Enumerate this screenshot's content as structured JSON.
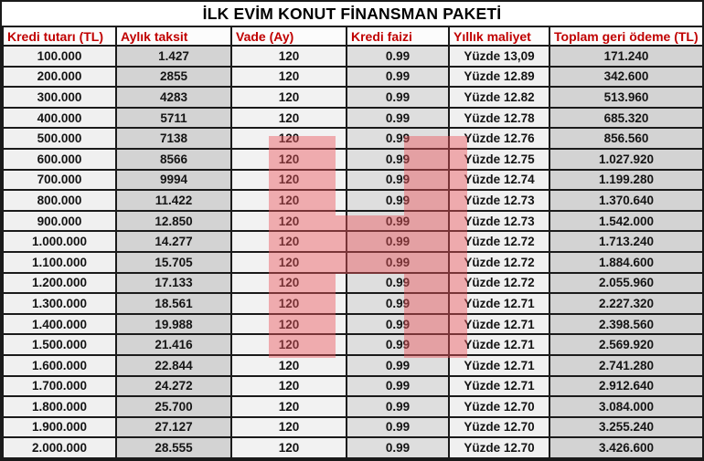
{
  "chart_data": {
    "type": "table",
    "title": "İLK EVİM KONUT FİNANSMAN PAKETİ",
    "columns": [
      "Kredi tutarı (TL)",
      "Aylık taksit",
      "Vade (Ay)",
      "Kredi faizi",
      "Yıllık maliyet",
      "Toplam geri ödeme (TL)"
    ],
    "rows": [
      [
        "100.000",
        "1.427",
        "120",
        "0.99",
        "Yüzde 13,09",
        "171.240"
      ],
      [
        "200.000",
        "2855",
        "120",
        "0.99",
        "Yüzde 12.89",
        "342.600"
      ],
      [
        "300.000",
        "4283",
        "120",
        "0.99",
        "Yüzde 12.82",
        "513.960"
      ],
      [
        "400.000",
        "5711",
        "120",
        "0.99",
        "Yüzde 12.78",
        "685.320"
      ],
      [
        "500.000",
        "7138",
        "120",
        "0.99",
        "Yüzde 12.76",
        "856.560"
      ],
      [
        "600.000",
        "8566",
        "120",
        "0.99",
        "Yüzde 12.75",
        "1.027.920"
      ],
      [
        "700.000",
        "9994",
        "120",
        "0.99",
        "Yüzde 12.74",
        "1.199.280"
      ],
      [
        "800.000",
        "11.422",
        "120",
        "0.99",
        "Yüzde 12.73",
        "1.370.640"
      ],
      [
        "900.000",
        "12.850",
        "120",
        "0.99",
        "Yüzde 12.73",
        "1.542.000"
      ],
      [
        "1.000.000",
        "14.277",
        "120",
        "0.99",
        "Yüzde 12.72",
        "1.713.240"
      ],
      [
        "1.100.000",
        "15.705",
        "120",
        "0.99",
        "Yüzde 12.72",
        "1.884.600"
      ],
      [
        "1.200.000",
        "17.133",
        "120",
        "0.99",
        "Yüzde 12.72",
        "2.055.960"
      ],
      [
        "1.300.000",
        "18.561",
        "120",
        "0.99",
        "Yüzde 12.71",
        "2.227.320"
      ],
      [
        "1.400.000",
        "19.988",
        "120",
        "0.99",
        "Yüzde 12.71",
        "2.398.560"
      ],
      [
        "1.500.000",
        "21.416",
        "120",
        "0.99",
        "Yüzde 12.71",
        "2.569.920"
      ],
      [
        "1.600.000",
        "22.844",
        "120",
        "0.99",
        "Yüzde 12.71",
        "2.741.280"
      ],
      [
        "1.700.000",
        "24.272",
        "120",
        "0.99",
        "Yüzde 12.71",
        "2.912.640"
      ],
      [
        "1.800.000",
        "25.700",
        "120",
        "0.99",
        "Yüzde 12.70",
        "3.084.000"
      ],
      [
        "1.900.000",
        "27.127",
        "120",
        "0.99",
        "Yüzde 12.70",
        "3.255.240"
      ],
      [
        "2.000.000",
        "28.555",
        "120",
        "0.99",
        "Yüzde 12.70",
        "3.426.600"
      ]
    ]
  },
  "highlight": {
    "shape": "H",
    "color": "#ec545a",
    "opacity": "0.45",
    "covers": "Vade (Ay) and Kredi faizi columns, rows 500.000 through 1.500.000"
  },
  "colors": {
    "header_text": "#c00000",
    "border": "#1a1a1a",
    "column_light": "#f1f1f1",
    "column_gray": "#d3d3d3"
  }
}
